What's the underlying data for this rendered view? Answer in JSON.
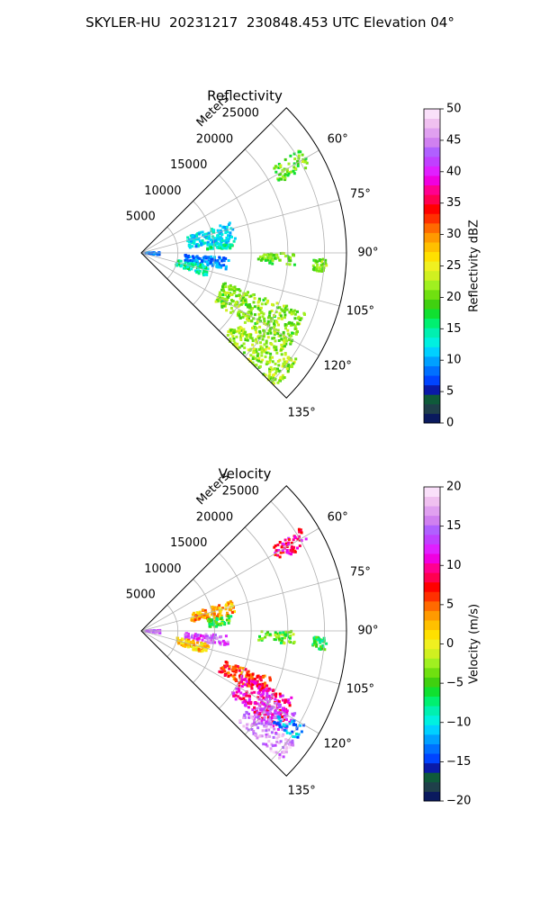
{
  "figure": {
    "suptitle": "SKYLER-HU  20231217  230848.453 UTC Elevation 04°"
  },
  "chart_data": [
    {
      "type": "heatmap",
      "subtype": "polar-sector-radar",
      "title": "Reflectivity",
      "range_label": "Meters",
      "range_ticks": [
        5000,
        10000,
        15000,
        20000,
        25000
      ],
      "range_tick_labels": [
        "5000",
        "10000",
        "15000",
        "20000",
        "25000"
      ],
      "range_max": 28000,
      "azimuth_range": [
        45,
        135
      ],
      "azimuth_ticks": [
        60,
        75,
        90,
        105,
        120,
        135
      ],
      "azimuth_tick_labels": [
        "60°",
        "75°",
        "90°",
        "105°",
        "120°",
        "135°"
      ],
      "grid": true,
      "colorbar": {
        "label": "Reflectivity dBZ",
        "min": 0,
        "max": 50,
        "ticks": [
          0,
          5,
          10,
          15,
          20,
          25,
          30,
          35,
          40,
          45,
          50
        ],
        "tick_labels": [
          "0",
          "5",
          "10",
          "15",
          "20",
          "25",
          "30",
          "35",
          "40",
          "45",
          "50"
        ],
        "palette": [
          "#0a1a5e",
          "#1f3f4a",
          "#0f5a3a",
          "#0a1aa8",
          "#0044ff",
          "#0070ff",
          "#00a0ff",
          "#00d0ff",
          "#00f0e0",
          "#00f0b0",
          "#00f070",
          "#10e030",
          "#40d010",
          "#70e010",
          "#a0f020",
          "#d0f020",
          "#f0f020",
          "#ffe000",
          "#ffc000",
          "#ff9a00",
          "#ff6a00",
          "#ff3000",
          "#ff0000",
          "#ff0050",
          "#ff0090",
          "#f000e0",
          "#e020ff",
          "#c040ff",
          "#b060ff",
          "#d080f0",
          "#e0a0f0",
          "#f0c0f0",
          "#fae0fa"
        ]
      },
      "echo_regions": [
        {
          "az": [
            71,
            84
          ],
          "range": [
            6500,
            13000
          ],
          "value": 12
        },
        {
          "az": [
            84,
            87
          ],
          "range": [
            9000,
            12500
          ],
          "value": 14
        },
        {
          "az": [
            93,
            101
          ],
          "range": [
            6000,
            12000
          ],
          "value": 9
        },
        {
          "az": [
            88,
            97
          ],
          "range": [
            200,
            2600
          ],
          "value": 8
        },
        {
          "az": [
            101,
            110
          ],
          "range": [
            5000,
            9500
          ],
          "value": 15
        },
        {
          "az": [
            110,
            124
          ],
          "range": [
            12000,
            24000
          ],
          "value": 21
        },
        {
          "az": [
            124,
            135
          ],
          "range": [
            16000,
            26000
          ],
          "value": 22
        },
        {
          "az": [
            57,
            63
          ],
          "range": [
            21000,
            26000
          ],
          "value": 20
        },
        {
          "az": [
            90,
            95
          ],
          "range": [
            16000,
            21000
          ],
          "value": 20
        },
        {
          "az": [
            92,
            96
          ],
          "range": [
            23500,
            25500
          ],
          "value": 20
        }
      ]
    },
    {
      "type": "heatmap",
      "subtype": "polar-sector-radar",
      "title": "Velocity",
      "range_label": "Meters",
      "range_ticks": [
        5000,
        10000,
        15000,
        20000,
        25000
      ],
      "range_tick_labels": [
        "5000",
        "10000",
        "15000",
        "20000",
        "25000"
      ],
      "range_max": 28000,
      "azimuth_range": [
        45,
        135
      ],
      "azimuth_ticks": [
        60,
        75,
        90,
        105,
        120,
        135
      ],
      "azimuth_tick_labels": [
        "60°",
        "75°",
        "90°",
        "105°",
        "120°",
        "135°"
      ],
      "grid": true,
      "colorbar": {
        "label": "Velocity (m/s)",
        "min": -20,
        "max": 20,
        "ticks": [
          -20,
          -15,
          -10,
          -5,
          0,
          5,
          10,
          15,
          20
        ],
        "tick_labels": [
          "−20",
          "−15",
          "−10",
          "−5",
          "0",
          "5",
          "10",
          "15",
          "20"
        ],
        "palette": [
          "#0a1a5e",
          "#1f3f4a",
          "#0f5a3a",
          "#0a1aa8",
          "#0044ff",
          "#0070ff",
          "#00a0ff",
          "#00d0ff",
          "#00f0e0",
          "#00f0b0",
          "#00f070",
          "#10e030",
          "#40d010",
          "#70e010",
          "#a0f020",
          "#d0f020",
          "#f0f020",
          "#ffe000",
          "#ffc000",
          "#ff9a00",
          "#ff6a00",
          "#ff3000",
          "#ff0000",
          "#ff0050",
          "#ff0090",
          "#f000e0",
          "#e020ff",
          "#c040ff",
          "#b060ff",
          "#d080f0",
          "#e0a0f0",
          "#f0c0f0",
          "#fae0fa"
        ]
      },
      "echo_regions": [
        {
          "az": [
            71,
            80
          ],
          "range": [
            7000,
            13000
          ],
          "value": 3
        },
        {
          "az": [
            80,
            87
          ],
          "range": [
            9000,
            12500
          ],
          "value": -5
        },
        {
          "az": [
            93,
            100
          ],
          "range": [
            6000,
            12000
          ],
          "value": 14
        },
        {
          "az": [
            88,
            97
          ],
          "range": [
            200,
            2600
          ],
          "value": 15
        },
        {
          "az": [
            101,
            110
          ],
          "range": [
            5000,
            9500
          ],
          "value": 2
        },
        {
          "az": [
            110,
            118
          ],
          "range": [
            12000,
            19000
          ],
          "value": 6
        },
        {
          "az": [
            114,
            126
          ],
          "range": [
            15000,
            23000
          ],
          "value": 10
        },
        {
          "az": [
            118,
            128
          ],
          "range": [
            19000,
            24000
          ],
          "value": 14
        },
        {
          "az": [
            126,
            133
          ],
          "range": [
            18000,
            26000
          ],
          "value": 16
        },
        {
          "az": [
            120,
            125
          ],
          "range": [
            22000,
            26000
          ],
          "value": -12
        },
        {
          "az": [
            57,
            63
          ],
          "range": [
            21000,
            26000
          ],
          "value": 9
        },
        {
          "az": [
            90,
            95
          ],
          "range": [
            16000,
            21000
          ],
          "value": -4
        },
        {
          "az": [
            92,
            96
          ],
          "range": [
            23500,
            25500
          ],
          "value": -6
        }
      ]
    }
  ]
}
